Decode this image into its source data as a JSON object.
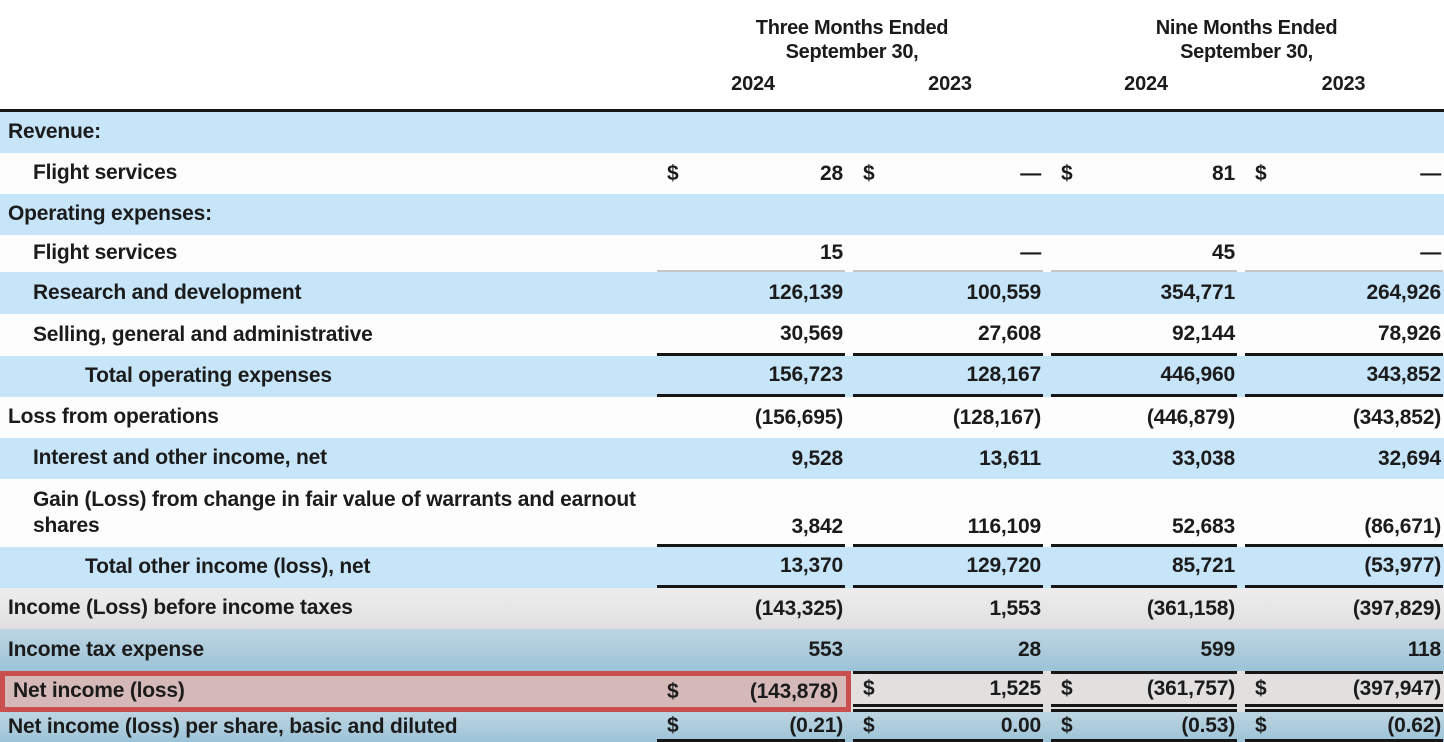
{
  "table": {
    "currency": "$",
    "header": {
      "groups": [
        {
          "line1": "Three Months Ended",
          "line2": "September 30,"
        },
        {
          "line1": "Nine Months Ended",
          "line2": "September 30,"
        }
      ],
      "years": [
        "2024",
        "2023",
        "2024",
        "2023"
      ]
    },
    "rows": [
      {
        "label": "Revenue:",
        "indent": 0,
        "band": "blue",
        "dollar": false,
        "values": [
          "",
          "",
          "",
          ""
        ]
      },
      {
        "label": "Flight services",
        "indent": 1,
        "band": "white",
        "dollar": true,
        "values": [
          "28",
          "—",
          "81",
          "—"
        ]
      },
      {
        "label": "Operating expenses:",
        "indent": 0,
        "band": "blue",
        "dollar": false,
        "values": [
          "",
          "",
          "",
          ""
        ]
      },
      {
        "label": "Flight services",
        "indent": 1,
        "band": "white",
        "dollar": false,
        "values": [
          "15",
          "—",
          "45",
          "—"
        ],
        "rule": "light"
      },
      {
        "label": "Research and development",
        "indent": 1,
        "band": "blue",
        "dollar": false,
        "values": [
          "126,139",
          "100,559",
          "354,771",
          "264,926"
        ]
      },
      {
        "label": "Selling, general and administrative",
        "indent": 1,
        "band": "white",
        "dollar": false,
        "values": [
          "30,569",
          "27,608",
          "92,144",
          "78,926"
        ],
        "rule": "bottom"
      },
      {
        "label": "Total operating expenses",
        "indent": 2,
        "band": "blue",
        "dollar": false,
        "values": [
          "156,723",
          "128,167",
          "446,960",
          "343,852"
        ],
        "rule": "bottom"
      },
      {
        "label": "Loss from operations",
        "indent": 0,
        "band": "white",
        "dollar": false,
        "values": [
          "(156,695)",
          "(128,167)",
          "(446,879)",
          "(343,852)"
        ]
      },
      {
        "label": "Interest and other income, net",
        "indent": 1,
        "band": "blue",
        "dollar": false,
        "values": [
          "9,528",
          "13,611",
          "33,038",
          "32,694"
        ]
      },
      {
        "label": "Gain (Loss) from change in fair value of warrants and earnout shares",
        "indent": 1,
        "band": "white",
        "dollar": false,
        "values": [
          "3,842",
          "116,109",
          "52,683",
          "(86,671)"
        ],
        "rule": "bottom"
      },
      {
        "label": "Total other income (loss), net",
        "indent": 2,
        "band": "blue",
        "dollar": false,
        "values": [
          "13,370",
          "129,720",
          "85,721",
          "(53,977)"
        ],
        "rule": "bottom"
      },
      {
        "label": "Income (Loss) before income taxes",
        "indent": 0,
        "band": "gray",
        "dollar": false,
        "values": [
          "(143,325)",
          "1,553",
          "(361,158)",
          "(397,829)"
        ]
      },
      {
        "label": "Income tax expense",
        "indent": 0,
        "band": "steel",
        "dollar": false,
        "values": [
          "553",
          "28",
          "599",
          "118"
        ]
      },
      {
        "label": "Net income (loss)",
        "indent": 0,
        "band": "highlight",
        "dollar": true,
        "values": [
          "(143,878)",
          "1,525",
          "(361,757)",
          "(397,947)"
        ],
        "highlight": true
      },
      {
        "label": "Net income (loss) per share, basic and diluted",
        "indent": 0,
        "band": "steel",
        "dollar": true,
        "values": [
          "(0.21)",
          "0.00",
          "(0.53)",
          "(0.62)"
        ],
        "rule": "bottom"
      }
    ],
    "highlight": {
      "border_color": "#c84f4d",
      "fill_color": "#d5b9b9",
      "scope": "Net income (loss) row label and first value column"
    },
    "palette": {
      "row_blue": "#c7e5f9",
      "row_steel": "#9fc4d8",
      "row_gray": "#e7e7e7",
      "row_white": "#fdfdfd",
      "line_color": "#161616"
    }
  }
}
